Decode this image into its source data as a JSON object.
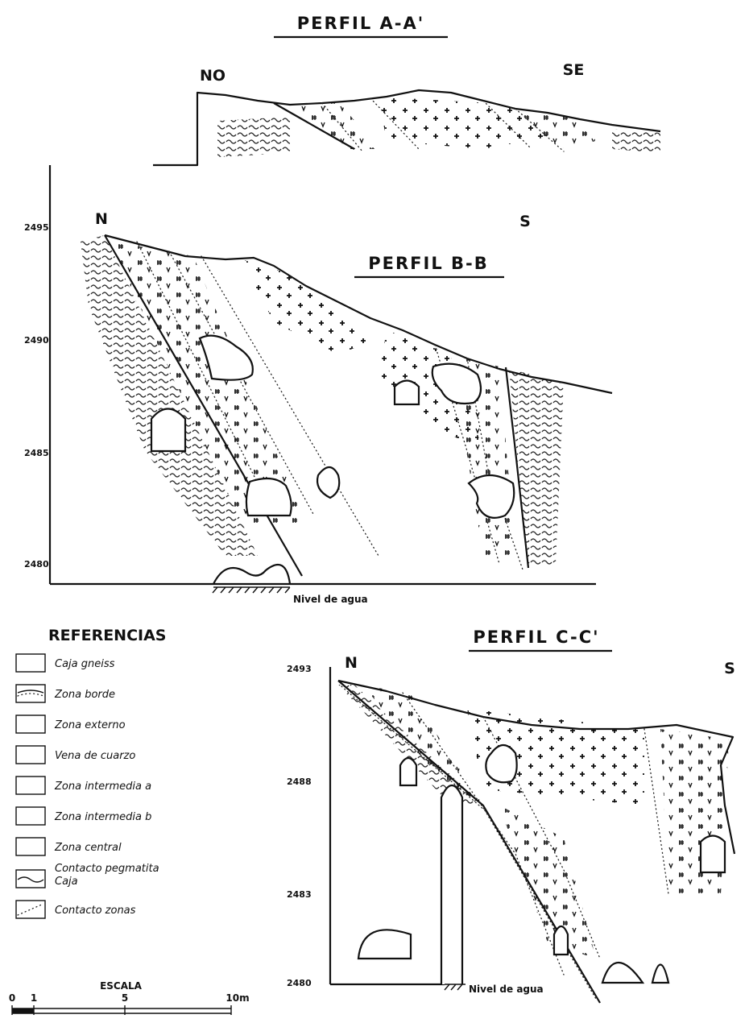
{
  "profiles": [
    {
      "title": "PERFIL A-A'",
      "left_label": "NO",
      "right_label": "SE"
    },
    {
      "title": "PERFIL B-B",
      "left_label": "N",
      "right_label": "S",
      "elevations": [
        "2495",
        "2490",
        "2485",
        "2480"
      ],
      "water_label": "Nivel de agua"
    },
    {
      "title": "PERFIL C-C'",
      "left_label": "N",
      "right_label": "S",
      "elevations": [
        "2493",
        "2488",
        "2483",
        "2480"
      ],
      "water_label": "Nivel de agua"
    }
  ],
  "legend": {
    "title": "REFERENCIAS",
    "items": [
      [
        "Caja gneiss"
      ],
      [
        "Zona borde"
      ],
      [
        "Zona externo"
      ],
      [
        "Vena de cuarzo"
      ],
      [
        "Zona intermedia a"
      ],
      [
        "Zona intermedia b"
      ],
      [
        "Zona central"
      ],
      [
        "Contacto pegmatita",
        "Caja"
      ],
      [
        "Contacto zonas"
      ]
    ]
  },
  "scale": {
    "title": "ESCALA",
    "ticks": [
      "0",
      "1",
      "5",
      "10m"
    ]
  }
}
